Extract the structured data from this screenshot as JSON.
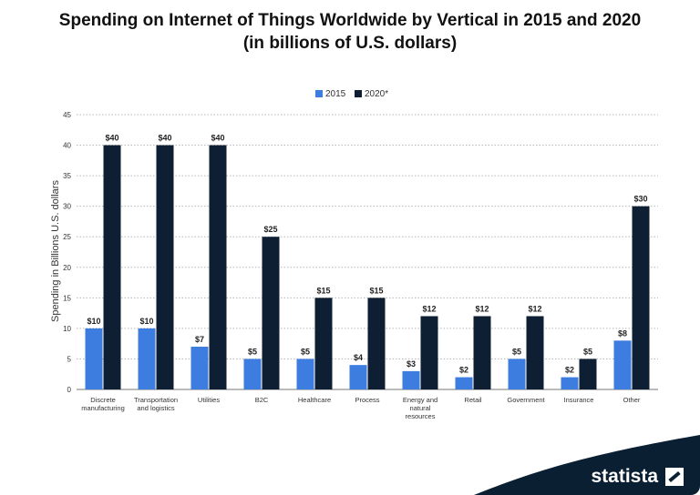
{
  "chart_data": {
    "type": "bar",
    "title_line1": "Spending on Internet of Things Worldwide by Vertical in 2015 and 2020",
    "title_line2": "(in billions of U.S. dollars)",
    "xlabel": "",
    "ylabel": "Spending in Billions U.S. dollars",
    "ylim": [
      0,
      45
    ],
    "yticks": [
      0,
      5,
      10,
      15,
      20,
      25,
      30,
      35,
      40,
      45
    ],
    "grid": true,
    "legend_position": "top-center",
    "categories": [
      [
        "Discrete",
        "manufacturing"
      ],
      [
        "Transportation",
        "and logistics"
      ],
      [
        "Utilities"
      ],
      [
        "B2C"
      ],
      [
        "Healthcare"
      ],
      [
        "Process"
      ],
      [
        "Energy and",
        "natural",
        "resources"
      ],
      [
        "Retail"
      ],
      [
        "Government"
      ],
      [
        "Insurance"
      ],
      [
        "Other"
      ]
    ],
    "series": [
      {
        "name": "2015",
        "color": "#3d7de0",
        "values": [
          10,
          10,
          7,
          5,
          5,
          4,
          3,
          2,
          5,
          2,
          8
        ],
        "labels": [
          "$10",
          "$10",
          "$7",
          "$5",
          "$5",
          "$4",
          "$3",
          "$2",
          "$5",
          "$2",
          "$8"
        ]
      },
      {
        "name": "2020*",
        "color": "#0f1f33",
        "values": [
          40,
          40,
          40,
          25,
          15,
          15,
          12,
          12,
          12,
          5,
          30
        ],
        "labels": [
          "$40",
          "$40",
          "$40",
          "$25",
          "$15",
          "$15",
          "$12",
          "$12",
          "$12",
          "$5",
          "$30"
        ]
      }
    ]
  },
  "branding": {
    "name": "statista",
    "color": "#0b1f33"
  }
}
